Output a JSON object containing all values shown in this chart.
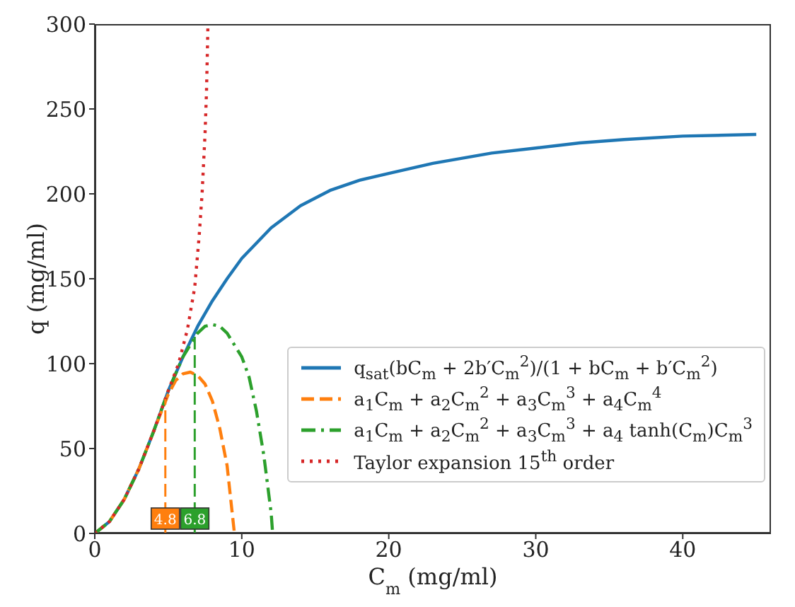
{
  "chart_data": {
    "type": "line",
    "xlabel": "C$_{m}$ (mg/ml)",
    "ylabel": "q (mg/ml)",
    "xlim": [
      0,
      46
    ],
    "xticks": [
      0,
      10,
      20,
      30,
      40
    ],
    "ylim": [
      0,
      300
    ],
    "yticks": [
      0,
      50,
      100,
      150,
      200,
      250,
      300
    ],
    "grid": false,
    "legend": "bottom right",
    "marker": "none",
    "series": [
      {
        "name": "q$_{sat}$(bC$_{m}$ + 2b′C$_{m}$$^{2}$)/(1 + bC$_{m}$ + b′C$_{m}$$^{2}$)",
        "color": "#1f77b4",
        "line_style": "solid",
        "x": [
          0,
          1,
          2,
          3,
          4,
          5,
          6,
          7,
          8,
          9,
          10,
          12,
          14,
          16,
          18,
          20,
          23,
          27,
          30,
          33,
          36,
          40,
          45
        ],
        "values": [
          0,
          7,
          20,
          38,
          60,
          84,
          104,
          122,
          137,
          150,
          162,
          180,
          193,
          202,
          208,
          212,
          218,
          224,
          227,
          230,
          232,
          234,
          235
        ]
      },
      {
        "name": "a$_{1}$C$_{m}$ + a$_{2}$C$_{m}$$^{2}$ + a$_{3}$C$_{m}$$^{3}$ + a$_{4}$C$_{m}$$^{4}$",
        "color": "#ff7f0e",
        "line_style": "dashed",
        "x": [
          0,
          1,
          2,
          3,
          4,
          5,
          5.5,
          6,
          6.5,
          7,
          7.5,
          8,
          8.5,
          9,
          9.5
        ],
        "values": [
          0,
          7,
          20,
          38,
          60,
          82,
          90,
          94,
          95,
          93,
          88,
          78,
          62,
          40,
          0
        ]
      },
      {
        "name": "a$_{1}$C$_{m}$ + a$_{2}$C$_{m}$$^{2}$ + a$_{3}$C$_{m}$$^{3}$ + a$_{4}$ tanh(C$_{m}$)C$_{m}$$^{3}$",
        "color": "#2ca02c",
        "line_style": "dashdot",
        "x": [
          0,
          1,
          2,
          3,
          4,
          5,
          6,
          7,
          7.5,
          8,
          8.5,
          9,
          10,
          10.5,
          11,
          11.5,
          12,
          12.1
        ],
        "values": [
          0,
          7,
          20,
          38,
          60,
          84,
          104,
          118,
          122,
          123,
          122,
          118,
          104,
          92,
          72,
          46,
          12,
          0
        ]
      },
      {
        "name": "Taylor expansion 15$^{th}$ order",
        "color": "#d62728",
        "line_style": "dotted",
        "x": [
          0,
          1,
          2,
          3,
          4,
          5,
          5.7,
          6.3,
          6.8,
          7.1,
          7.3,
          7.5,
          7.6,
          7.7
        ],
        "values": [
          0,
          7,
          20,
          38,
          60,
          84,
          100,
          120,
          145,
          175,
          200,
          235,
          260,
          300
        ]
      }
    ],
    "ref_lines": [
      {
        "axis": "x",
        "value": 4.8,
        "label": "4.8",
        "color": "#ff7f0e",
        "line_style": "dashed"
      },
      {
        "axis": "x",
        "value": 6.8,
        "label": "6.8",
        "color": "#2ca02c",
        "line_style": "dashed"
      }
    ]
  }
}
